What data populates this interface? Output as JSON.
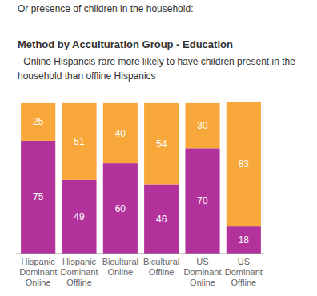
{
  "chart_data": {
    "type": "bar",
    "stacked": true,
    "data_labels": true,
    "tick_labels": "x",
    "pretitle": "Or presence of children in the household:",
    "title": "Method by Acculturation Group - Education",
    "subtitle": "- Online Hispancis rare more likely to have children present in the household than offline Hispanics",
    "categories": [
      "Hispanic Dominant Online",
      "Hispanic Dominant Offline",
      "Bicultural Online",
      "Bicultural Offline",
      "US Dominant Online",
      "US Dominant Offline"
    ],
    "ylim": [
      0,
      101
    ],
    "series": [
      {
        "color": "#b3319a",
        "values": [
          75,
          49,
          60,
          46,
          70,
          18
        ]
      },
      {
        "color": "#f8a83a",
        "values": [
          25,
          51,
          40,
          54,
          30,
          83
        ]
      }
    ]
  }
}
